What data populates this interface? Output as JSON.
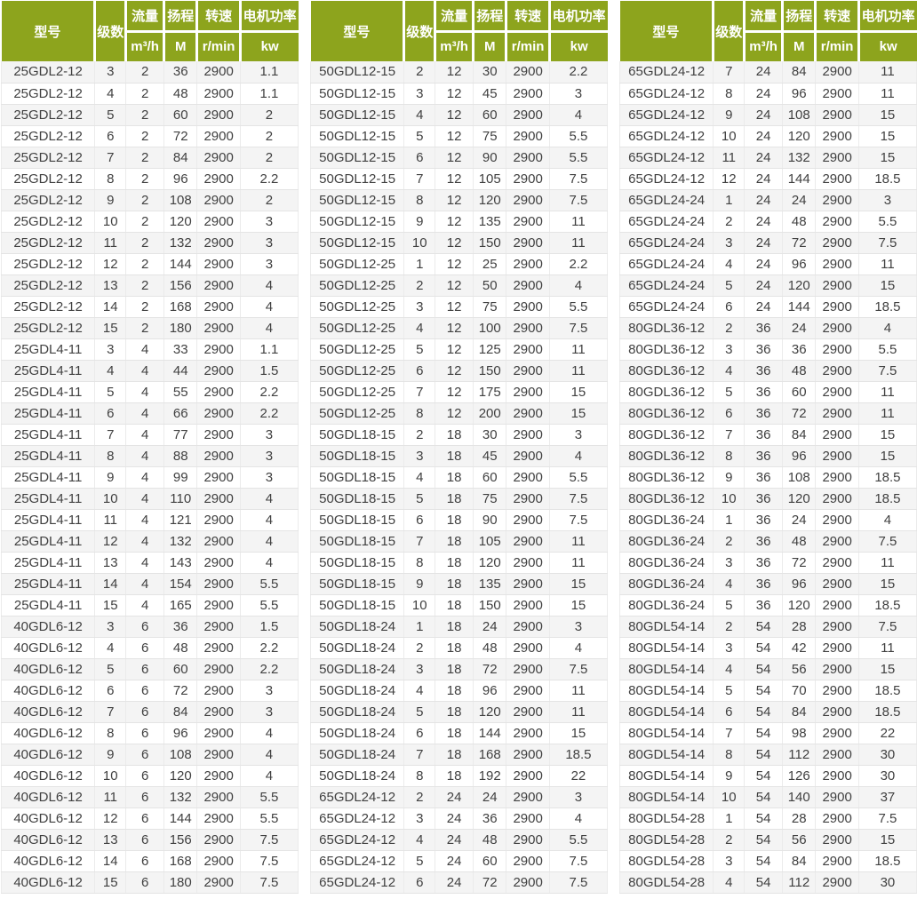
{
  "colors": {
    "header_bg": "#8da41d",
    "header_text": "#ffffff",
    "row_odd_bg": "#f4f4f4",
    "row_even_bg": "#ffffff",
    "cell_text": "#404040",
    "grid_line_h": "#e4e4e4",
    "grid_line_v": "#ebebeb"
  },
  "header": {
    "model": "型号",
    "stages": "级数",
    "flow": "流量",
    "flow_unit": "m³/h",
    "head": "扬程",
    "head_unit": "M",
    "speed": "转速",
    "speed_unit": "r/min",
    "power": "电机功率",
    "power_unit": "kw"
  },
  "tables": [
    {
      "rows": [
        [
          "25GDL2-12",
          3,
          2,
          36,
          2900,
          1.1
        ],
        [
          "25GDL2-12",
          4,
          2,
          48,
          2900,
          1.1
        ],
        [
          "25GDL2-12",
          5,
          2,
          60,
          2900,
          2
        ],
        [
          "25GDL2-12",
          6,
          2,
          72,
          2900,
          2
        ],
        [
          "25GDL2-12",
          7,
          2,
          84,
          2900,
          2
        ],
        [
          "25GDL2-12",
          8,
          2,
          96,
          2900,
          2.2
        ],
        [
          "25GDL2-12",
          9,
          2,
          108,
          2900,
          2
        ],
        [
          "25GDL2-12",
          10,
          2,
          120,
          2900,
          3
        ],
        [
          "25GDL2-12",
          11,
          2,
          132,
          2900,
          3
        ],
        [
          "25GDL2-12",
          12,
          2,
          144,
          2900,
          3
        ],
        [
          "25GDL2-12",
          13,
          2,
          156,
          2900,
          4
        ],
        [
          "25GDL2-12",
          14,
          2,
          168,
          2900,
          4
        ],
        [
          "25GDL2-12",
          15,
          2,
          180,
          2900,
          4
        ],
        [
          "25GDL4-11",
          3,
          4,
          33,
          2900,
          1.1
        ],
        [
          "25GDL4-11",
          4,
          4,
          44,
          2900,
          1.5
        ],
        [
          "25GDL4-11",
          5,
          4,
          55,
          2900,
          2.2
        ],
        [
          "25GDL4-11",
          6,
          4,
          66,
          2900,
          2.2
        ],
        [
          "25GDL4-11",
          7,
          4,
          77,
          2900,
          3
        ],
        [
          "25GDL4-11",
          8,
          4,
          88,
          2900,
          3
        ],
        [
          "25GDL4-11",
          9,
          4,
          99,
          2900,
          3
        ],
        [
          "25GDL4-11",
          10,
          4,
          110,
          2900,
          4
        ],
        [
          "25GDL4-11",
          11,
          4,
          121,
          2900,
          4
        ],
        [
          "25GDL4-11",
          12,
          4,
          132,
          2900,
          4
        ],
        [
          "25GDL4-11",
          13,
          4,
          143,
          2900,
          4
        ],
        [
          "25GDL4-11",
          14,
          4,
          154,
          2900,
          5.5
        ],
        [
          "25GDL4-11",
          15,
          4,
          165,
          2900,
          5.5
        ],
        [
          "40GDL6-12",
          3,
          6,
          36,
          2900,
          1.5
        ],
        [
          "40GDL6-12",
          4,
          6,
          48,
          2900,
          2.2
        ],
        [
          "40GDL6-12",
          5,
          6,
          60,
          2900,
          2.2
        ],
        [
          "40GDL6-12",
          6,
          6,
          72,
          2900,
          3
        ],
        [
          "40GDL6-12",
          7,
          6,
          84,
          2900,
          3
        ],
        [
          "40GDL6-12",
          8,
          6,
          96,
          2900,
          4
        ],
        [
          "40GDL6-12",
          9,
          6,
          108,
          2900,
          4
        ],
        [
          "40GDL6-12",
          10,
          6,
          120,
          2900,
          4
        ],
        [
          "40GDL6-12",
          11,
          6,
          132,
          2900,
          5.5
        ],
        [
          "40GDL6-12",
          12,
          6,
          144,
          2900,
          5.5
        ],
        [
          "40GDL6-12",
          13,
          6,
          156,
          2900,
          7.5
        ],
        [
          "40GDL6-12",
          14,
          6,
          168,
          2900,
          7.5
        ],
        [
          "40GDL6-12",
          15,
          6,
          180,
          2900,
          7.5
        ]
      ]
    },
    {
      "rows": [
        [
          "50GDL12-15",
          2,
          12,
          30,
          2900,
          2.2
        ],
        [
          "50GDL12-15",
          3,
          12,
          45,
          2900,
          3
        ],
        [
          "50GDL12-15",
          4,
          12,
          60,
          2900,
          4
        ],
        [
          "50GDL12-15",
          5,
          12,
          75,
          2900,
          5.5
        ],
        [
          "50GDL12-15",
          6,
          12,
          90,
          2900,
          5.5
        ],
        [
          "50GDL12-15",
          7,
          12,
          105,
          2900,
          7.5
        ],
        [
          "50GDL12-15",
          8,
          12,
          120,
          2900,
          7.5
        ],
        [
          "50GDL12-15",
          9,
          12,
          135,
          2900,
          11
        ],
        [
          "50GDL12-15",
          10,
          12,
          150,
          2900,
          11
        ],
        [
          "50GDL12-25",
          1,
          12,
          25,
          2900,
          2.2
        ],
        [
          "50GDL12-25",
          2,
          12,
          50,
          2900,
          4
        ],
        [
          "50GDL12-25",
          3,
          12,
          75,
          2900,
          5.5
        ],
        [
          "50GDL12-25",
          4,
          12,
          100,
          2900,
          7.5
        ],
        [
          "50GDL12-25",
          5,
          12,
          125,
          2900,
          11
        ],
        [
          "50GDL12-25",
          6,
          12,
          150,
          2900,
          11
        ],
        [
          "50GDL12-25",
          7,
          12,
          175,
          2900,
          15
        ],
        [
          "50GDL12-25",
          8,
          12,
          200,
          2900,
          15
        ],
        [
          "50GDL18-15",
          2,
          18,
          30,
          2900,
          3
        ],
        [
          "50GDL18-15",
          3,
          18,
          45,
          2900,
          4
        ],
        [
          "50GDL18-15",
          4,
          18,
          60,
          2900,
          5.5
        ],
        [
          "50GDL18-15",
          5,
          18,
          75,
          2900,
          7.5
        ],
        [
          "50GDL18-15",
          6,
          18,
          90,
          2900,
          7.5
        ],
        [
          "50GDL18-15",
          7,
          18,
          105,
          2900,
          11
        ],
        [
          "50GDL18-15",
          8,
          18,
          120,
          2900,
          11
        ],
        [
          "50GDL18-15",
          9,
          18,
          135,
          2900,
          15
        ],
        [
          "50GDL18-15",
          10,
          18,
          150,
          2900,
          15
        ],
        [
          "50GDL18-24",
          1,
          18,
          24,
          2900,
          3
        ],
        [
          "50GDL18-24",
          2,
          18,
          48,
          2900,
          4
        ],
        [
          "50GDL18-24",
          3,
          18,
          72,
          2900,
          7.5
        ],
        [
          "50GDL18-24",
          4,
          18,
          96,
          2900,
          11
        ],
        [
          "50GDL18-24",
          5,
          18,
          120,
          2900,
          11
        ],
        [
          "50GDL18-24",
          6,
          18,
          144,
          2900,
          15
        ],
        [
          "50GDL18-24",
          7,
          18,
          168,
          2900,
          18.5
        ],
        [
          "50GDL18-24",
          8,
          18,
          192,
          2900,
          22
        ],
        [
          "65GDL24-12",
          2,
          24,
          24,
          2900,
          3
        ],
        [
          "65GDL24-12",
          3,
          24,
          36,
          2900,
          4
        ],
        [
          "65GDL24-12",
          4,
          24,
          48,
          2900,
          5.5
        ],
        [
          "65GDL24-12",
          5,
          24,
          60,
          2900,
          7.5
        ],
        [
          "65GDL24-12",
          6,
          24,
          72,
          2900,
          7.5
        ]
      ]
    },
    {
      "rows": [
        [
          "65GDL24-12",
          7,
          24,
          84,
          2900,
          11
        ],
        [
          "65GDL24-12",
          8,
          24,
          96,
          2900,
          11
        ],
        [
          "65GDL24-12",
          9,
          24,
          108,
          2900,
          15
        ],
        [
          "65GDL24-12",
          10,
          24,
          120,
          2900,
          15
        ],
        [
          "65GDL24-12",
          11,
          24,
          132,
          2900,
          15
        ],
        [
          "65GDL24-12",
          12,
          24,
          144,
          2900,
          18.5
        ],
        [
          "65GDL24-24",
          1,
          24,
          24,
          2900,
          3
        ],
        [
          "65GDL24-24",
          2,
          24,
          48,
          2900,
          5.5
        ],
        [
          "65GDL24-24",
          3,
          24,
          72,
          2900,
          7.5
        ],
        [
          "65GDL24-24",
          4,
          24,
          96,
          2900,
          11
        ],
        [
          "65GDL24-24",
          5,
          24,
          120,
          2900,
          15
        ],
        [
          "65GDL24-24",
          6,
          24,
          144,
          2900,
          18.5
        ],
        [
          "80GDL36-12",
          2,
          36,
          24,
          2900,
          4
        ],
        [
          "80GDL36-12",
          3,
          36,
          36,
          2900,
          5.5
        ],
        [
          "80GDL36-12",
          4,
          36,
          48,
          2900,
          7.5
        ],
        [
          "80GDL36-12",
          5,
          36,
          60,
          2900,
          11
        ],
        [
          "80GDL36-12",
          6,
          36,
          72,
          2900,
          11
        ],
        [
          "80GDL36-12",
          7,
          36,
          84,
          2900,
          15
        ],
        [
          "80GDL36-12",
          8,
          36,
          96,
          2900,
          15
        ],
        [
          "80GDL36-12",
          9,
          36,
          108,
          2900,
          18.5
        ],
        [
          "80GDL36-12",
          10,
          36,
          120,
          2900,
          18.5
        ],
        [
          "80GDL36-24",
          1,
          36,
          24,
          2900,
          4
        ],
        [
          "80GDL36-24",
          2,
          36,
          48,
          2900,
          7.5
        ],
        [
          "80GDL36-24",
          3,
          36,
          72,
          2900,
          11
        ],
        [
          "80GDL36-24",
          4,
          36,
          96,
          2900,
          15
        ],
        [
          "80GDL36-24",
          5,
          36,
          120,
          2900,
          18.5
        ],
        [
          "80GDL54-14",
          2,
          54,
          28,
          2900,
          7.5
        ],
        [
          "80GDL54-14",
          3,
          54,
          42,
          2900,
          11
        ],
        [
          "80GDL54-14",
          4,
          54,
          56,
          2900,
          15
        ],
        [
          "80GDL54-14",
          5,
          54,
          70,
          2900,
          18.5
        ],
        [
          "80GDL54-14",
          6,
          54,
          84,
          2900,
          18.5
        ],
        [
          "80GDL54-14",
          7,
          54,
          98,
          2900,
          22
        ],
        [
          "80GDL54-14",
          8,
          54,
          112,
          2900,
          30
        ],
        [
          "80GDL54-14",
          9,
          54,
          126,
          2900,
          30
        ],
        [
          "80GDL54-14",
          10,
          54,
          140,
          2900,
          37
        ],
        [
          "80GDL54-28",
          1,
          54,
          28,
          2900,
          7.5
        ],
        [
          "80GDL54-28",
          2,
          54,
          56,
          2900,
          15
        ],
        [
          "80GDL54-28",
          3,
          54,
          84,
          2900,
          18.5
        ],
        [
          "80GDL54-28",
          4,
          54,
          112,
          2900,
          30
        ]
      ]
    }
  ]
}
